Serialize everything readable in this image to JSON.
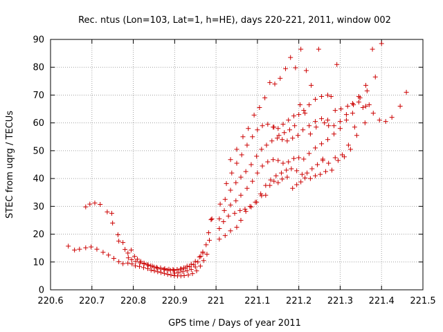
{
  "chart_data": {
    "type": "scatter",
    "title": "Rec. ntus (Lon=103, Lat=1, h=HE), days 220-221, 2011, window 002",
    "xlabel": "GPS time / Days of year 2011",
    "ylabel": "STEC from uqrg / TECUs",
    "xlim": [
      220.6,
      221.5
    ],
    "ylim": [
      0,
      90
    ],
    "xticks": [
      220.6,
      220.7,
      220.8,
      220.9,
      221,
      221.1,
      221.2,
      221.3,
      221.4,
      221.5
    ],
    "xtick_labels": [
      "220.6",
      "220.7",
      "220.8",
      "220.9",
      "221",
      "221.1",
      "221.2",
      "221.3",
      "221.4",
      "221.5"
    ],
    "yticks": [
      0,
      10,
      20,
      30,
      40,
      50,
      60,
      70,
      80,
      90
    ],
    "ytick_labels": [
      "0",
      "10",
      "20",
      "30",
      "40",
      "50",
      "60",
      "70",
      "80",
      "90"
    ],
    "grid": true,
    "marker": "+",
    "color": "#cc0000",
    "series": [
      {
        "name": "STEC",
        "points": [
          [
            220.643,
            15.7
          ],
          [
            220.658,
            14.3
          ],
          [
            220.67,
            14.6
          ],
          [
            220.685,
            15.1
          ],
          [
            220.698,
            15.4
          ],
          [
            220.712,
            14.6
          ],
          [
            220.727,
            13.5
          ],
          [
            220.74,
            12.5
          ],
          [
            220.753,
            11.3
          ],
          [
            220.765,
            10.1
          ],
          [
            220.775,
            9.4
          ],
          [
            220.787,
            9.6
          ],
          [
            220.797,
            9.3
          ],
          [
            220.805,
            8.6
          ],
          [
            220.815,
            8.4
          ],
          [
            220.825,
            8.0
          ],
          [
            220.835,
            7.6
          ],
          [
            220.843,
            7.1
          ],
          [
            220.851,
            6.8
          ],
          [
            220.859,
            6.5
          ],
          [
            220.867,
            6.2
          ],
          [
            220.875,
            5.9
          ],
          [
            220.883,
            5.6
          ],
          [
            220.891,
            5.3
          ],
          [
            220.899,
            5.1
          ],
          [
            220.907,
            5.0
          ],
          [
            220.915,
            5.0
          ],
          [
            220.923,
            5.1
          ],
          [
            220.933,
            5.3
          ],
          [
            220.943,
            5.8
          ],
          [
            220.953,
            6.8
          ],
          [
            220.962,
            8.5
          ],
          [
            220.97,
            10.5
          ],
          [
            220.978,
            12.8
          ],
          [
            220.685,
            29.8
          ],
          [
            220.695,
            30.8
          ],
          [
            220.707,
            31.2
          ],
          [
            220.72,
            30.7
          ],
          [
            220.737,
            28.0
          ],
          [
            220.748,
            27.5
          ],
          [
            220.75,
            24.0
          ],
          [
            220.763,
            19.8
          ],
          [
            220.765,
            17.5
          ],
          [
            220.775,
            17.0
          ],
          [
            220.78,
            14.5
          ],
          [
            220.787,
            13.2
          ],
          [
            220.795,
            14.3
          ],
          [
            220.803,
            12.0
          ],
          [
            220.81,
            11.0
          ],
          [
            220.818,
            10.2
          ],
          [
            220.826,
            9.6
          ],
          [
            220.834,
            9.0
          ],
          [
            220.842,
            8.6
          ],
          [
            220.85,
            8.2
          ],
          [
            220.858,
            7.8
          ],
          [
            220.866,
            7.5
          ],
          [
            220.874,
            7.3
          ],
          [
            220.882,
            7.1
          ],
          [
            220.89,
            7.0
          ],
          [
            220.898,
            7.0
          ],
          [
            220.906,
            7.2
          ],
          [
            220.914,
            7.5
          ],
          [
            220.922,
            7.9
          ],
          [
            220.93,
            8.5
          ],
          [
            220.94,
            9.2
          ],
          [
            220.95,
            10.2
          ],
          [
            220.96,
            11.8
          ],
          [
            220.968,
            13.6
          ],
          [
            220.976,
            16.2
          ],
          [
            220.984,
            17.8
          ],
          [
            220.788,
            11.5
          ],
          [
            220.796,
            10.8
          ],
          [
            220.806,
            10.2
          ],
          [
            220.816,
            9.7
          ],
          [
            220.826,
            9.3
          ],
          [
            220.836,
            8.9
          ],
          [
            220.846,
            8.5
          ],
          [
            220.856,
            8.1
          ],
          [
            220.866,
            7.9
          ],
          [
            220.876,
            7.6
          ],
          [
            220.886,
            7.4
          ],
          [
            220.896,
            7.3
          ],
          [
            220.906,
            7.3
          ],
          [
            220.916,
            7.5
          ],
          [
            220.926,
            7.8
          ],
          [
            220.936,
            8.3
          ],
          [
            220.946,
            9.0
          ],
          [
            220.956,
            10.0
          ],
          [
            220.968,
            13.2
          ],
          [
            220.982,
            20.5
          ],
          [
            220.988,
            25.2
          ],
          [
            220.99,
            25.5
          ],
          [
            220.9,
            6.0
          ],
          [
            220.91,
            6.2
          ],
          [
            220.92,
            6.5
          ],
          [
            220.93,
            6.8
          ],
          [
            220.94,
            7.3
          ],
          [
            220.95,
            8.2
          ],
          [
            220.963,
            12.0
          ],
          [
            221.008,
            18.2
          ],
          [
            221.022,
            19.5
          ],
          [
            221.035,
            21.2
          ],
          [
            221.05,
            22.5
          ],
          [
            221.06,
            25.0
          ],
          [
            221.072,
            28.2
          ],
          [
            221.085,
            29.8
          ],
          [
            221.098,
            31.5
          ],
          [
            221.11,
            33.8
          ],
          [
            221.12,
            34.0
          ],
          [
            221.13,
            37.5
          ],
          [
            221.14,
            39.0
          ],
          [
            221.15,
            38.5
          ],
          [
            221.16,
            39.8
          ],
          [
            221.172,
            40.5
          ],
          [
            221.185,
            36.5
          ],
          [
            221.195,
            37.8
          ],
          [
            221.205,
            38.8
          ],
          [
            221.215,
            40.2
          ],
          [
            221.228,
            40.0
          ],
          [
            221.24,
            41.0
          ],
          [
            221.252,
            41.5
          ],
          [
            221.265,
            42.5
          ],
          [
            221.28,
            43.0
          ],
          [
            221.295,
            46.5
          ],
          [
            221.31,
            47.8
          ],
          [
            221.325,
            50.5
          ],
          [
            221.34,
            55.5
          ],
          [
            221.36,
            60.0
          ],
          [
            221.38,
            63.5
          ],
          [
            221.395,
            61.0
          ],
          [
            221.41,
            60.5
          ],
          [
            221.425,
            62.0
          ],
          [
            221.445,
            66.0
          ],
          [
            221.46,
            71.0
          ],
          [
            221.008,
            22.0
          ],
          [
            221.018,
            24.5
          ],
          [
            221.03,
            26.5
          ],
          [
            221.045,
            27.5
          ],
          [
            221.058,
            28.5
          ],
          [
            221.07,
            29.0
          ],
          [
            221.082,
            30.0
          ],
          [
            221.095,
            31.5
          ],
          [
            221.108,
            34.5
          ],
          [
            221.12,
            37.5
          ],
          [
            221.132,
            39.5
          ],
          [
            221.145,
            41.0
          ],
          [
            221.158,
            42.0
          ],
          [
            221.17,
            43.0
          ],
          [
            221.182,
            43.5
          ],
          [
            221.195,
            42.8
          ],
          [
            221.208,
            41.5
          ],
          [
            221.22,
            42.0
          ],
          [
            221.232,
            43.5
          ],
          [
            221.245,
            45.0
          ],
          [
            221.258,
            46.5
          ],
          [
            221.272,
            45.5
          ],
          [
            221.288,
            47.5
          ],
          [
            221.305,
            48.5
          ],
          [
            221.32,
            52.0
          ],
          [
            221.335,
            58.5
          ],
          [
            221.355,
            65.5
          ],
          [
            221.37,
            66.5
          ],
          [
            221.385,
            76.5
          ],
          [
            221.4,
            88.5
          ],
          [
            221.008,
            25.5
          ],
          [
            221.02,
            28.5
          ],
          [
            221.035,
            30.5
          ],
          [
            221.048,
            32.0
          ],
          [
            221.06,
            34.0
          ],
          [
            221.075,
            36.5
          ],
          [
            221.088,
            39.0
          ],
          [
            221.1,
            42.0
          ],
          [
            221.112,
            44.5
          ],
          [
            221.125,
            46.0
          ],
          [
            221.138,
            46.8
          ],
          [
            221.15,
            46.5
          ],
          [
            221.162,
            45.5
          ],
          [
            221.175,
            46.0
          ],
          [
            221.188,
            47.2
          ],
          [
            221.2,
            47.5
          ],
          [
            221.212,
            47.0
          ],
          [
            221.225,
            49.0
          ],
          [
            221.24,
            51.0
          ],
          [
            221.255,
            52.5
          ],
          [
            221.27,
            54.0
          ],
          [
            221.285,
            56.0
          ],
          [
            221.3,
            58.0
          ],
          [
            221.315,
            61.0
          ],
          [
            221.33,
            63.5
          ],
          [
            221.345,
            67.5
          ],
          [
            221.362,
            73.5
          ],
          [
            221.378,
            86.5
          ],
          [
            221.01,
            30.8
          ],
          [
            221.022,
            32.5
          ],
          [
            221.035,
            35.8
          ],
          [
            221.048,
            38.5
          ],
          [
            221.06,
            40.5
          ],
          [
            221.072,
            42.5
          ],
          [
            221.085,
            45.0
          ],
          [
            221.098,
            48.0
          ],
          [
            221.11,
            50.5
          ],
          [
            221.122,
            52.0
          ],
          [
            221.135,
            53.5
          ],
          [
            221.148,
            54.5
          ],
          [
            221.16,
            54.0
          ],
          [
            221.172,
            53.5
          ],
          [
            221.185,
            54.5
          ],
          [
            221.198,
            55.5
          ],
          [
            221.21,
            57.5
          ],
          [
            221.225,
            59.0
          ],
          [
            221.24,
            60.5
          ],
          [
            221.255,
            61.5
          ],
          [
            221.27,
            61.0
          ],
          [
            221.285,
            59.0
          ],
          [
            221.3,
            60.5
          ],
          [
            221.315,
            63.0
          ],
          [
            221.33,
            67.0
          ],
          [
            221.345,
            69.5
          ],
          [
            221.365,
            71.5
          ],
          [
            221.025,
            38.2
          ],
          [
            221.038,
            42.0
          ],
          [
            221.05,
            45.5
          ],
          [
            221.062,
            48.5
          ],
          [
            221.075,
            52.0
          ],
          [
            221.088,
            55.0
          ],
          [
            221.1,
            57.5
          ],
          [
            221.112,
            59.0
          ],
          [
            221.125,
            59.5
          ],
          [
            221.138,
            58.5
          ],
          [
            221.15,
            58.0
          ],
          [
            221.162,
            59.5
          ],
          [
            221.175,
            61.0
          ],
          [
            221.188,
            62.5
          ],
          [
            221.2,
            63.0
          ],
          [
            221.212,
            64.5
          ],
          [
            221.225,
            66.5
          ],
          [
            221.24,
            68.5
          ],
          [
            221.255,
            69.5
          ],
          [
            221.27,
            70.0
          ],
          [
            221.035,
            46.8
          ],
          [
            221.05,
            50.5
          ],
          [
            221.065,
            55.0
          ],
          [
            221.078,
            58.0
          ],
          [
            221.092,
            62.8
          ],
          [
            221.105,
            65.5
          ],
          [
            221.118,
            69.0
          ],
          [
            221.13,
            74.5
          ],
          [
            221.142,
            74.0
          ],
          [
            221.155,
            76.0
          ],
          [
            221.168,
            79.5
          ],
          [
            221.18,
            83.5
          ],
          [
            221.192,
            79.8
          ],
          [
            221.205,
            86.5
          ],
          [
            221.218,
            78.8
          ],
          [
            221.23,
            73.5
          ],
          [
            221.248,
            86.5
          ],
          [
            221.262,
            60.0
          ],
          [
            221.278,
            69.5
          ],
          [
            221.292,
            81.0
          ],
          [
            221.14,
            58.5
          ],
          [
            221.152,
            55.5
          ],
          [
            221.165,
            56.5
          ],
          [
            221.178,
            57.5
          ],
          [
            221.19,
            59.0
          ],
          [
            221.203,
            66.5
          ],
          [
            221.215,
            63.5
          ],
          [
            221.228,
            56.0
          ],
          [
            221.242,
            58.5
          ],
          [
            221.258,
            47.0
          ],
          [
            221.272,
            59.0
          ],
          [
            221.288,
            64.5
          ],
          [
            221.302,
            65.0
          ],
          [
            221.318,
            66.0
          ],
          [
            221.332,
            66.5
          ],
          [
            221.348,
            69.0
          ],
          [
            221.362,
            66.0
          ]
        ]
      }
    ]
  }
}
